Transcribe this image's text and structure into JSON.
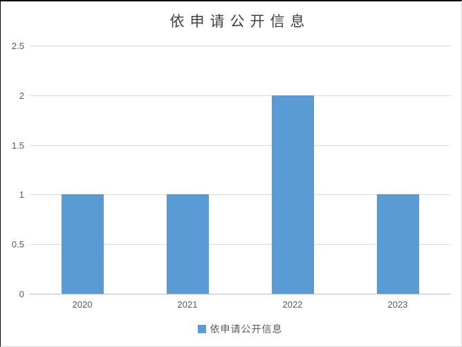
{
  "chart_data": {
    "type": "bar",
    "title": "依申请公开信息",
    "categories": [
      "2020",
      "2021",
      "2022",
      "2023"
    ],
    "series": [
      {
        "name": "依申请公开信息",
        "values": [
          1,
          1,
          2,
          1
        ]
      }
    ],
    "xlabel": "",
    "ylabel": "",
    "ylim": [
      0,
      2.5
    ],
    "yticks": [
      "0",
      "0.5",
      "1",
      "1.5",
      "2",
      "2.5"
    ],
    "grid": true,
    "legend_position": "bottom",
    "colors": {
      "bar": "#5B9BD5",
      "gridline": "#D9D9D9",
      "axis_line": "#BFBFBF",
      "tick_text": "#595959",
      "title_text": "#404040",
      "background": "#FFFFFF"
    }
  }
}
